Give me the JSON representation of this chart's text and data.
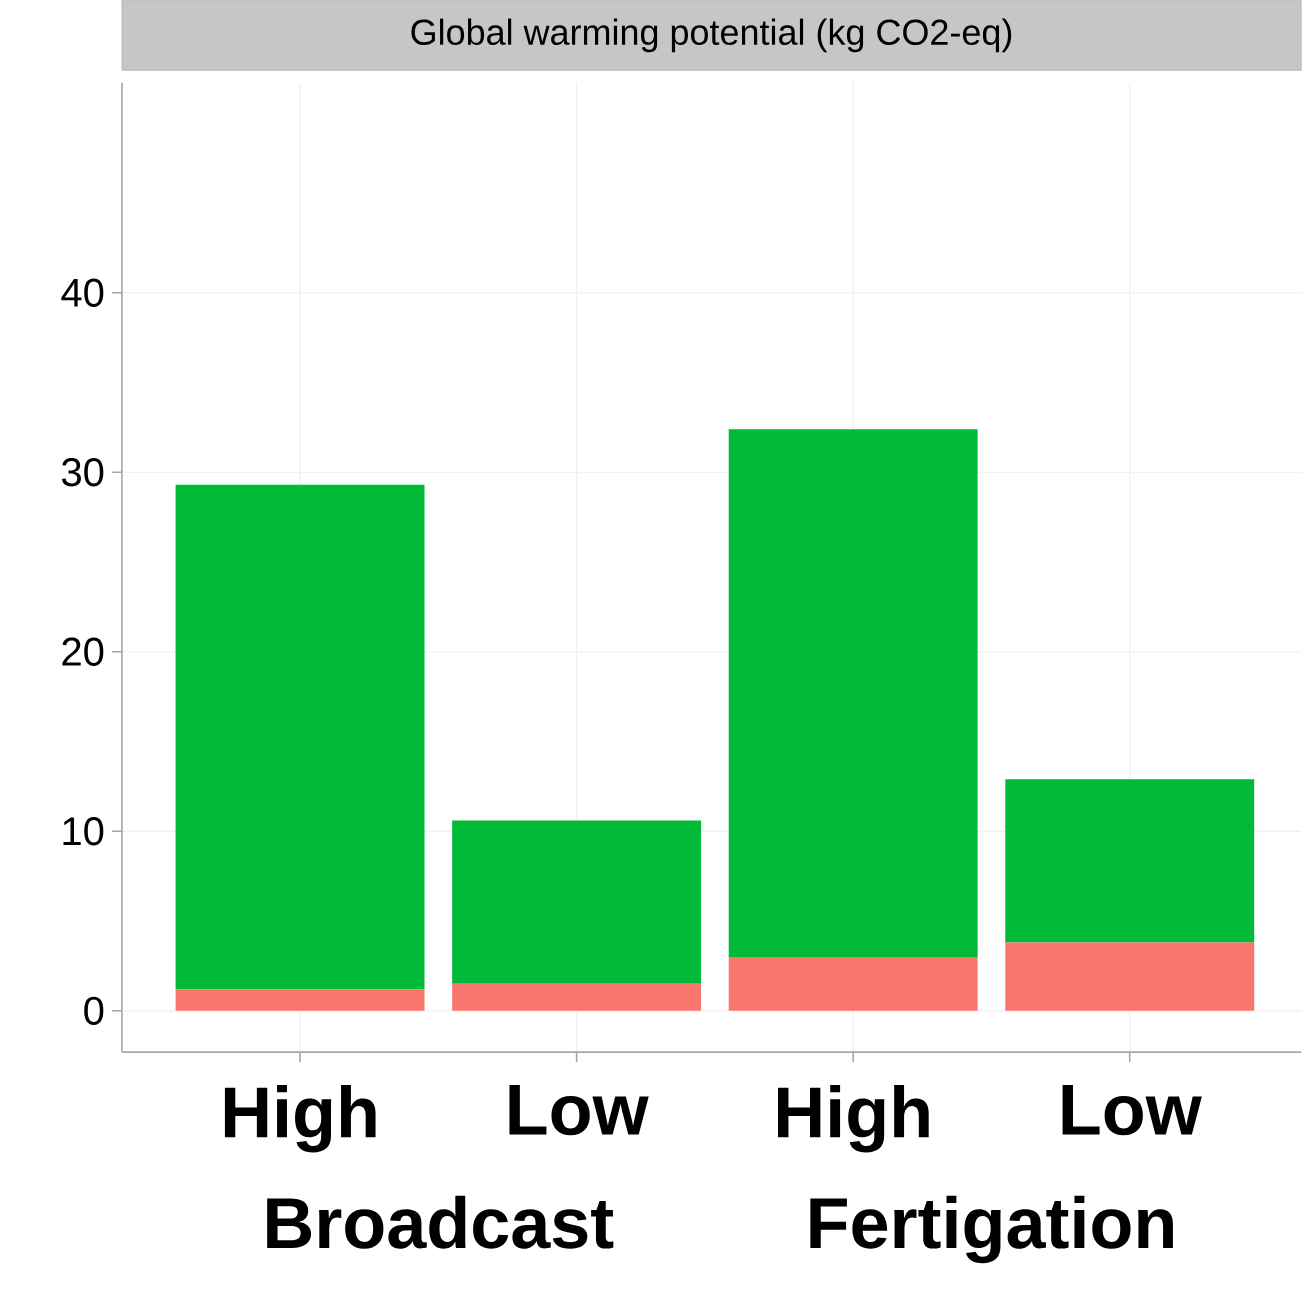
{
  "chart_data": {
    "type": "bar",
    "title": "Global warming potential (kg CO2-eq)",
    "categories": [
      "High",
      "Low",
      "High",
      "Low"
    ],
    "stacked": true,
    "series": [
      {
        "color": "#f8766d",
        "values": [
          1.2,
          1.5,
          3.0,
          3.8
        ]
      },
      {
        "color": "#00ba38",
        "values": [
          28.1,
          9.1,
          29.4,
          9.1
        ]
      }
    ],
    "ylim": [
      -2.3,
      51.7
    ],
    "yticks": [
      0,
      10,
      20,
      30,
      40
    ],
    "grid": true,
    "annotations": [
      "Broadcast",
      "Fertigation"
    ]
  }
}
